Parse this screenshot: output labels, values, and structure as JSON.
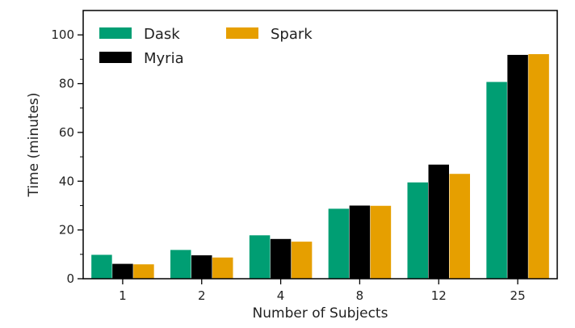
{
  "chart_data": {
    "type": "bar",
    "title": "",
    "xlabel": "Number of Subjects",
    "ylabel": "Time (minutes)",
    "categories": [
      "1",
      "2",
      "4",
      "8",
      "12",
      "25"
    ],
    "ylim": [
      0,
      110
    ],
    "yticks": [
      0,
      20,
      40,
      60,
      80,
      100
    ],
    "legend_position": "top-left",
    "grid": false,
    "series": [
      {
        "name": "Dask",
        "color": "#009e73",
        "values": [
          9.8,
          11.8,
          17.8,
          28.7,
          39.5,
          80.7
        ]
      },
      {
        "name": "Myria",
        "color": "#000000",
        "values": [
          6.1,
          9.6,
          16.3,
          30.0,
          46.8,
          91.8
        ]
      },
      {
        "name": "Spark",
        "color": "#e69f00",
        "values": [
          5.9,
          8.7,
          15.2,
          29.9,
          43.0,
          92.1
        ]
      }
    ]
  }
}
